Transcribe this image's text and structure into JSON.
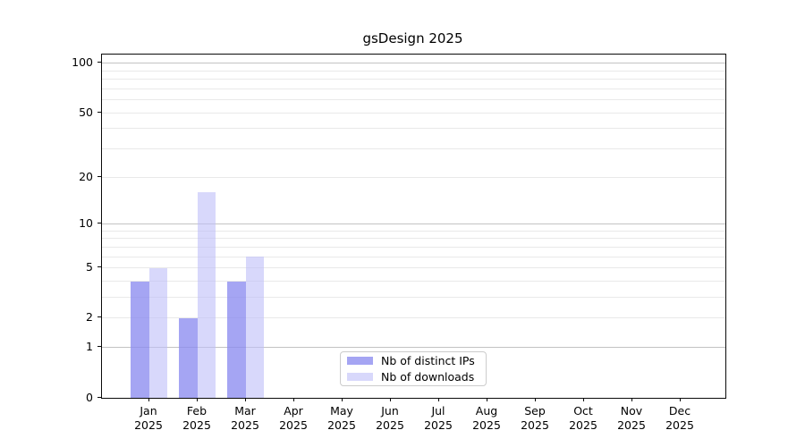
{
  "title": "gsDesign 2025",
  "chart_data": {
    "type": "bar",
    "title": "gsDesign 2025",
    "categories": [
      {
        "month": "Jan",
        "year": "2025"
      },
      {
        "month": "Feb",
        "year": "2025"
      },
      {
        "month": "Mar",
        "year": "2025"
      },
      {
        "month": "Apr",
        "year": "2025"
      },
      {
        "month": "May",
        "year": "2025"
      },
      {
        "month": "Jun",
        "year": "2025"
      },
      {
        "month": "Jul",
        "year": "2025"
      },
      {
        "month": "Aug",
        "year": "2025"
      },
      {
        "month": "Sep",
        "year": "2025"
      },
      {
        "month": "Oct",
        "year": "2025"
      },
      {
        "month": "Nov",
        "year": "2025"
      },
      {
        "month": "Dec",
        "year": "2025"
      }
    ],
    "series": [
      {
        "name": "Nb of distinct IPs",
        "color_hex": "#a8a8f8",
        "color_rgba": "rgba(140,140,240,0.78)",
        "values": [
          4,
          2,
          4,
          0,
          0,
          0,
          0,
          0,
          0,
          0,
          0,
          0
        ]
      },
      {
        "name": "Nb of downloads",
        "color_hex": "#d9d9fa",
        "color_rgba": "rgba(190,190,248,0.60)",
        "values": [
          5,
          16,
          6,
          0,
          0,
          0,
          0,
          0,
          0,
          0,
          0,
          0
        ]
      }
    ],
    "y_scale": "log10(1+v)",
    "ylim": [
      0,
      113
    ],
    "y_ticks": [
      0,
      1,
      2,
      5,
      10,
      20,
      50,
      100
    ],
    "y_major_gridlines": [
      1,
      10,
      100
    ],
    "y_minor_gridlines": [
      2,
      3,
      4,
      5,
      6,
      7,
      8,
      9,
      20,
      30,
      40,
      50,
      60,
      70,
      80,
      90
    ],
    "grid": true,
    "legend_position": "bottom-center",
    "colors": {
      "major_grid": "#c3c3c3",
      "minor_grid": "#e9e9e9",
      "spine": "#0a0a0a",
      "background": "#ffffff"
    }
  }
}
